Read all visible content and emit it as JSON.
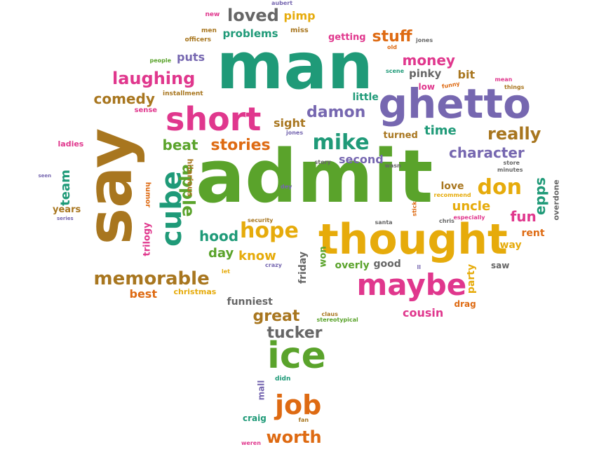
{
  "colors": {
    "green": "#5aa32b",
    "teal": "#1f9a78",
    "purple": "#7667b0",
    "pink": "#e0378d",
    "orange": "#de6a12",
    "yellow": "#e6ab0b",
    "brown": "#a8761f",
    "gray": "#666666"
  },
  "words": [
    {
      "text": "admit",
      "color": "green"
    },
    {
      "text": "man",
      "color": "teal"
    },
    {
      "text": "say",
      "color": "brown"
    },
    {
      "text": "ghetto",
      "color": "purple"
    },
    {
      "text": "thought",
      "color": "yellow"
    },
    {
      "text": "ice",
      "color": "green"
    },
    {
      "text": "short",
      "color": "pink"
    },
    {
      "text": "maybe",
      "color": "pink"
    },
    {
      "text": "cube",
      "color": "teal"
    },
    {
      "text": "job",
      "color": "orange"
    },
    {
      "text": "hope",
      "color": "yellow"
    },
    {
      "text": "mike",
      "color": "teal"
    },
    {
      "text": "don",
      "color": "yellow"
    },
    {
      "text": "memorable",
      "color": "brown"
    },
    {
      "text": "laughing",
      "color": "pink"
    },
    {
      "text": "loved",
      "color": "gray"
    },
    {
      "text": "really",
      "color": "brown"
    },
    {
      "text": "worth",
      "color": "orange"
    },
    {
      "text": "stories",
      "color": "orange"
    },
    {
      "text": "damon",
      "color": "purple"
    },
    {
      "text": "character",
      "color": "purple"
    },
    {
      "text": "great",
      "color": "brown"
    },
    {
      "text": "comedy",
      "color": "brown"
    },
    {
      "text": "tucker",
      "color": "gray"
    },
    {
      "text": "money",
      "color": "pink"
    },
    {
      "text": "stuff",
      "color": "orange"
    },
    {
      "text": "apple",
      "color": "green"
    },
    {
      "text": "hood",
      "color": "teal"
    },
    {
      "text": "beat",
      "color": "green"
    },
    {
      "text": "fun",
      "color": "pink"
    },
    {
      "text": "epps",
      "color": "teal"
    },
    {
      "text": "uncle",
      "color": "yellow"
    },
    {
      "text": "team",
      "color": "teal"
    },
    {
      "text": "time",
      "color": "teal"
    },
    {
      "text": "know",
      "color": "yellow"
    },
    {
      "text": "day",
      "color": "green"
    },
    {
      "text": "cousin",
      "color": "pink"
    },
    {
      "text": "second",
      "color": "purple"
    },
    {
      "text": "sight",
      "color": "brown"
    },
    {
      "text": "pinky",
      "color": "gray"
    },
    {
      "text": "bit",
      "color": "brown"
    },
    {
      "text": "puts",
      "color": "purple"
    },
    {
      "text": "pimp",
      "color": "yellow"
    },
    {
      "text": "problems",
      "color": "teal"
    },
    {
      "text": "getting",
      "color": "pink"
    },
    {
      "text": "friday",
      "color": "gray"
    },
    {
      "text": "best",
      "color": "orange"
    },
    {
      "text": "funniest",
      "color": "gray"
    },
    {
      "text": "mall",
      "color": "purple"
    },
    {
      "text": "little",
      "color": "teal"
    },
    {
      "text": "turned",
      "color": "brown"
    },
    {
      "text": "party",
      "color": "yellow"
    },
    {
      "text": "love",
      "color": "brown"
    },
    {
      "text": "way",
      "color": "yellow"
    },
    {
      "text": "rent",
      "color": "orange"
    },
    {
      "text": "overly",
      "color": "green"
    },
    {
      "text": "good",
      "color": "gray"
    },
    {
      "text": "won",
      "color": "green"
    },
    {
      "text": "saw",
      "color": "gray"
    },
    {
      "text": "drag",
      "color": "orange"
    },
    {
      "text": "trilogy",
      "color": "pink"
    },
    {
      "text": "years",
      "color": "brown"
    },
    {
      "text": "craig",
      "color": "teal"
    },
    {
      "text": "hilarious",
      "color": "brown"
    },
    {
      "text": "low",
      "color": "pink"
    },
    {
      "text": "overdone",
      "color": "gray"
    },
    {
      "text": "christmas",
      "color": "yellow"
    },
    {
      "text": "humor",
      "color": "orange"
    },
    {
      "text": "ladies",
      "color": "pink"
    },
    {
      "text": "sense",
      "color": "pink"
    },
    {
      "text": "installment",
      "color": "brown"
    },
    {
      "text": "people",
      "color": "green"
    },
    {
      "text": "officers",
      "color": "brown"
    },
    {
      "text": "men",
      "color": "brown"
    },
    {
      "text": "new",
      "color": "pink"
    },
    {
      "text": "aubert",
      "color": "purple"
    },
    {
      "text": "miss",
      "color": "brown"
    },
    {
      "text": "jones",
      "color": "gray"
    },
    {
      "text": "old",
      "color": "orange"
    },
    {
      "text": "scene",
      "color": "teal"
    },
    {
      "text": "funny",
      "color": "orange"
    },
    {
      "text": "mean",
      "color": "pink"
    },
    {
      "text": "things",
      "color": "brown"
    },
    {
      "text": "jones",
      "color": "purple"
    },
    {
      "text": "story",
      "color": "gray"
    },
    {
      "text": "wasn",
      "color": "gray"
    },
    {
      "text": "minutes",
      "color": "gray"
    },
    {
      "text": "store",
      "color": "gray"
    },
    {
      "text": "security",
      "color": "brown"
    },
    {
      "text": "dey",
      "color": "purple"
    },
    {
      "text": "stick",
      "color": "orange"
    },
    {
      "text": "recommend",
      "color": "yellow"
    },
    {
      "text": "especially",
      "color": "pink"
    },
    {
      "text": "chris",
      "color": "gray"
    },
    {
      "text": "santa",
      "color": "gray"
    },
    {
      "text": "crazy",
      "color": "purple"
    },
    {
      "text": "let",
      "color": "yellow"
    },
    {
      "text": "ll",
      "color": "purple"
    },
    {
      "text": "claus",
      "color": "brown"
    },
    {
      "text": "stereotypical",
      "color": "green"
    },
    {
      "text": "didn",
      "color": "teal"
    },
    {
      "text": "fan",
      "color": "brown"
    },
    {
      "text": "weren",
      "color": "pink"
    },
    {
      "text": "seen",
      "color": "purple"
    },
    {
      "text": "series",
      "color": "purple"
    }
  ]
}
